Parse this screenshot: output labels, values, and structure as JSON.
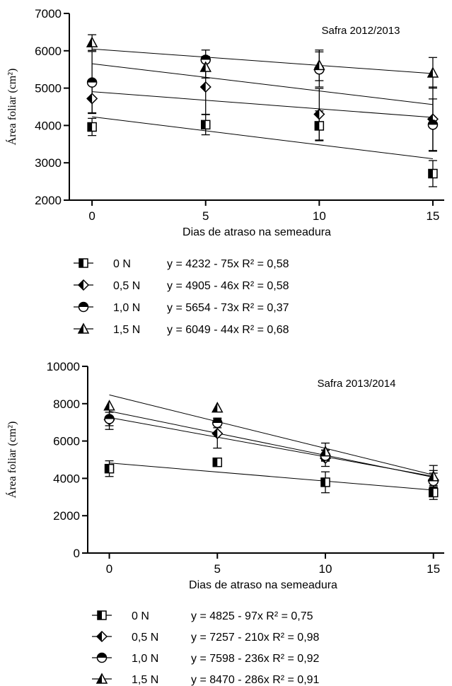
{
  "chart_data": [
    {
      "type": "scatter",
      "annotation": "Safra 2012/2013",
      "xlabel": "Dias de atraso na semeadura",
      "ylabel": "Área foliar (cm²)",
      "xlim": [
        -1,
        15.5
      ],
      "ylim": [
        2000,
        7000
      ],
      "xticks": [
        "0",
        "5",
        "10",
        "15"
      ],
      "yticks": [
        "2000",
        "3000",
        "4000",
        "5000",
        "6000",
        "7000"
      ],
      "x": [
        0,
        5,
        10,
        15
      ],
      "series": [
        {
          "name": "0 N",
          "marker": "square",
          "values": [
            3960,
            4020,
            3990,
            2710
          ],
          "errors": [
            230,
            270,
            400,
            350
          ],
          "fit": {
            "a": 4232,
            "b": -75
          },
          "equation": "y = 4232 - 75x",
          "r2": "R² = 0,58"
        },
        {
          "name": "0,5 N",
          "marker": "diamond",
          "values": [
            4720,
            5030,
            4300,
            4170
          ],
          "errors": [
            380,
            730,
            690,
            860
          ],
          "fit": {
            "a": 4905,
            "b": -46
          },
          "equation": "y = 4905 - 46x",
          "r2": "R² = 0,58"
        },
        {
          "name": "1,0 N",
          "marker": "circle",
          "values": [
            5150,
            5760,
            5500,
            4020
          ],
          "errors": [
            830,
            260,
            470,
            690
          ],
          "fit": {
            "a": 5654,
            "b": -73
          },
          "equation": "y = 5654 - 73x",
          "r2": "R² = 0,37"
        },
        {
          "name": "1,5 N",
          "marker": "triangle",
          "values": [
            6220,
            5560,
            5610,
            5410
          ],
          "errors": [
            210,
            290,
            410,
            410
          ],
          "fit": {
            "a": 6049,
            "b": -44
          },
          "equation": "y = 6049 - 44x",
          "r2": "R² = 0,68"
        }
      ],
      "legend_position": "bottom"
    },
    {
      "type": "scatter",
      "annotation": "Safra 2013/2014",
      "xlabel": "Dias de atraso na semeadura",
      "ylabel": "Área foliar (cm²)",
      "xlim": [
        -1,
        15.5
      ],
      "ylim": [
        0,
        10000
      ],
      "xticks": [
        "0",
        "5",
        "10",
        "15"
      ],
      "yticks": [
        "0",
        "2000",
        "4000",
        "6000",
        "8000",
        "10000"
      ],
      "x": [
        0,
        5,
        10,
        15
      ],
      "series": [
        {
          "name": "0 N",
          "marker": "square",
          "values": [
            4520,
            4860,
            3790,
            3240
          ],
          "errors": [
            420,
            130,
            560,
            370
          ],
          "fit": {
            "a": 4825,
            "b": -97
          },
          "equation": "y = 4825 - 97x",
          "r2": "R² = 0,75"
        },
        {
          "name": "0,5 N",
          "marker": "diamond",
          "values": [
            7140,
            6400,
            5080,
            3910
          ],
          "errors": [
            520,
            780,
            440,
            370
          ],
          "fit": {
            "a": 7257,
            "b": -210
          },
          "equation": "y = 7257 - 210x",
          "r2": "R² = 0,98"
        },
        {
          "name": "1,0 N",
          "marker": "circle",
          "values": [
            7180,
            6970,
            5210,
            3860
          ],
          "errors": [
            360,
            260,
            290,
            560
          ],
          "fit": {
            "a": 7598,
            "b": -236
          },
          "equation": "y = 7598 - 236x",
          "r2": "R² = 0,92"
        },
        {
          "name": "1,5 N",
          "marker": "triangle",
          "values": [
            7890,
            7780,
            5430,
            4100
          ],
          "errors": [
            0,
            0,
            460,
            590
          ],
          "fit": {
            "a": 8470,
            "b": -286
          },
          "equation": "y = 8470 - 286x",
          "r2": "R² = 0,91"
        }
      ],
      "legend_position": "bottom"
    }
  ]
}
